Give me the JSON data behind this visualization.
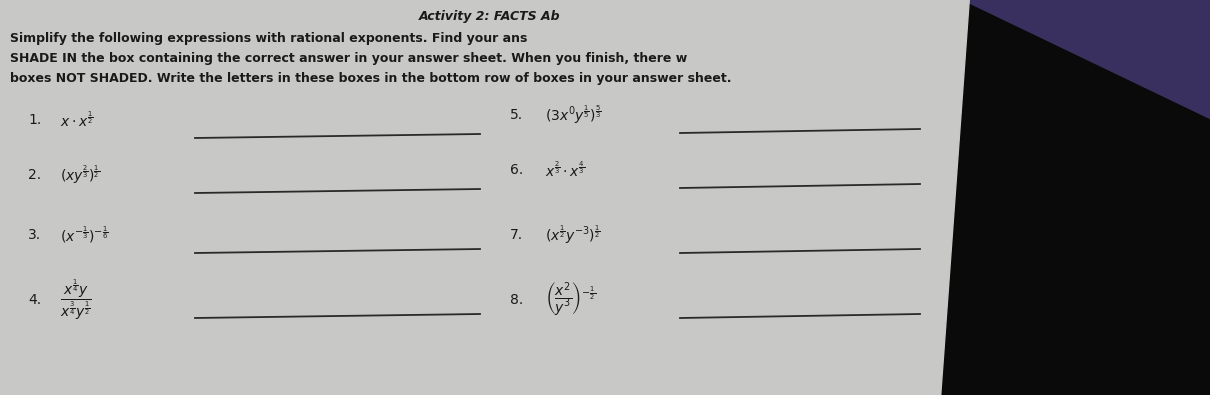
{
  "bg_color": "#1a1520",
  "paper_color": "#c8c9c7",
  "text_color": "#1a1a1a",
  "line_color": "#2a2a2a",
  "title": "Activity 2: FACTS A",
  "instr1": "Simplify the following expressions with rational exponents. Find your ans",
  "instr2": "SHADE IN the box containing the correct answer in your answer sheet. When you finish, there w",
  "instr3": "boxes NOT SHADED. Write the letters in these boxes in the bottom row of boxes in your answer sheet.",
  "left_nums": [
    "1.",
    "2.",
    "3.",
    "4."
  ],
  "left_exprs_text": [
    "x· x^{1/2}",
    "(xy^{2/3})^{1/2}",
    "(x^{-1/3})^{-1/6}",
    "x^{1/4}y / x^{3/4}y^{1/2}"
  ],
  "right_nums": [
    "5.",
    "6.",
    "7.",
    "8."
  ],
  "right_exprs_text": [
    "(3x^0 y^{1/5})^{5/3}",
    "x^{2/3} x^{4/3}",
    "(x^{1/2} y^{-3})^{1/2}",
    "(x^2 / y^3)^{-1/2}"
  ],
  "purple_top": "#3a3060",
  "dark_bg": "#0a0a0a"
}
